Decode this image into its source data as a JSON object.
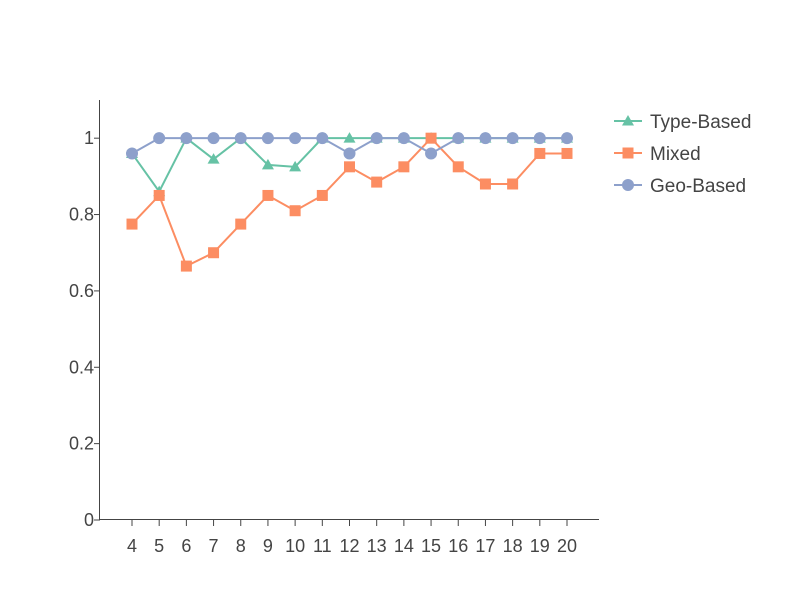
{
  "chart_data": {
    "type": "line",
    "title": "",
    "xlabel": "",
    "ylabel": "",
    "x": [
      4,
      5,
      6,
      7,
      8,
      9,
      10,
      11,
      12,
      13,
      14,
      15,
      16,
      17,
      18,
      19,
      20
    ],
    "x_tick_labels": [
      "4",
      "5",
      "6",
      "7",
      "8",
      "9",
      "10",
      "11",
      "12",
      "13",
      "14",
      "15",
      "16",
      "17",
      "18",
      "19",
      "20"
    ],
    "y_ticks": [
      0,
      0.2,
      0.4,
      0.6,
      0.8,
      1
    ],
    "y_tick_labels": [
      "0",
      "0.2",
      "0.4",
      "0.6",
      "0.8",
      "1"
    ],
    "ylim": [
      0,
      1.1
    ],
    "grid": false,
    "legend_position": "top-right, outside plot",
    "series": [
      {
        "name": "Type-Based",
        "color": "#66c2a5",
        "marker": "triangle",
        "values": [
          0.96,
          0.86,
          1.0,
          0.945,
          1.0,
          0.93,
          0.925,
          1.0,
          1.0,
          1.0,
          1.0,
          1.0,
          1.0,
          1.0,
          1.0,
          1.0,
          1.0
        ]
      },
      {
        "name": "Mixed",
        "color": "#fc8d62",
        "marker": "square",
        "values": [
          0.775,
          0.85,
          0.665,
          0.7,
          0.775,
          0.85,
          0.81,
          0.85,
          0.925,
          0.885,
          0.925,
          1.0,
          0.925,
          0.88,
          0.88,
          0.96,
          0.96
        ]
      },
      {
        "name": "Geo-Based",
        "color": "#8da0cb",
        "marker": "circle",
        "values": [
          0.96,
          1.0,
          1.0,
          1.0,
          1.0,
          1.0,
          1.0,
          1.0,
          0.96,
          1.0,
          1.0,
          0.96,
          1.0,
          1.0,
          1.0,
          1.0,
          1.0
        ]
      }
    ]
  }
}
